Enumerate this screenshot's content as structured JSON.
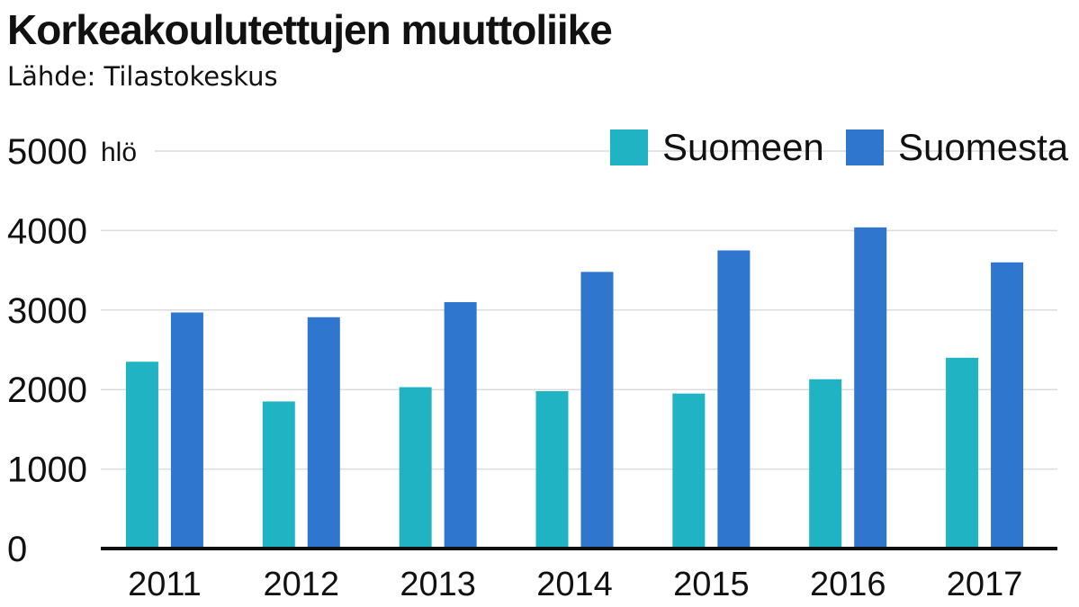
{
  "header": {
    "title": "Korkeakoulutettujen muuttoliike",
    "subtitle": "Lähde: Tilastokeskus"
  },
  "chart_data": {
    "type": "bar",
    "title": "Korkeakoulutettujen muuttoliike",
    "subtitle": "Lähde: Tilastokeskus",
    "ylabel": "",
    "y_unit": "hlö",
    "ylim": [
      0,
      5000
    ],
    "yticks": [
      0,
      1000,
      2000,
      3000,
      4000,
      5000
    ],
    "ytick_labels": [
      "0",
      "1000",
      "2000",
      "3000",
      "4000",
      "5000"
    ],
    "categories": [
      "2011",
      "2012",
      "2013",
      "2014",
      "2015",
      "2016",
      "2017"
    ],
    "series": [
      {
        "name": "Suomeen",
        "color": "#1fb3c4",
        "values": [
          2350,
          1850,
          2030,
          1980,
          1950,
          2130,
          2400
        ]
      },
      {
        "name": "Suomesta",
        "color": "#2f76cf",
        "values": [
          2970,
          2910,
          3100,
          3480,
          3750,
          4040,
          3600
        ]
      }
    ],
    "legend_position": "top-right",
    "grid": true
  }
}
